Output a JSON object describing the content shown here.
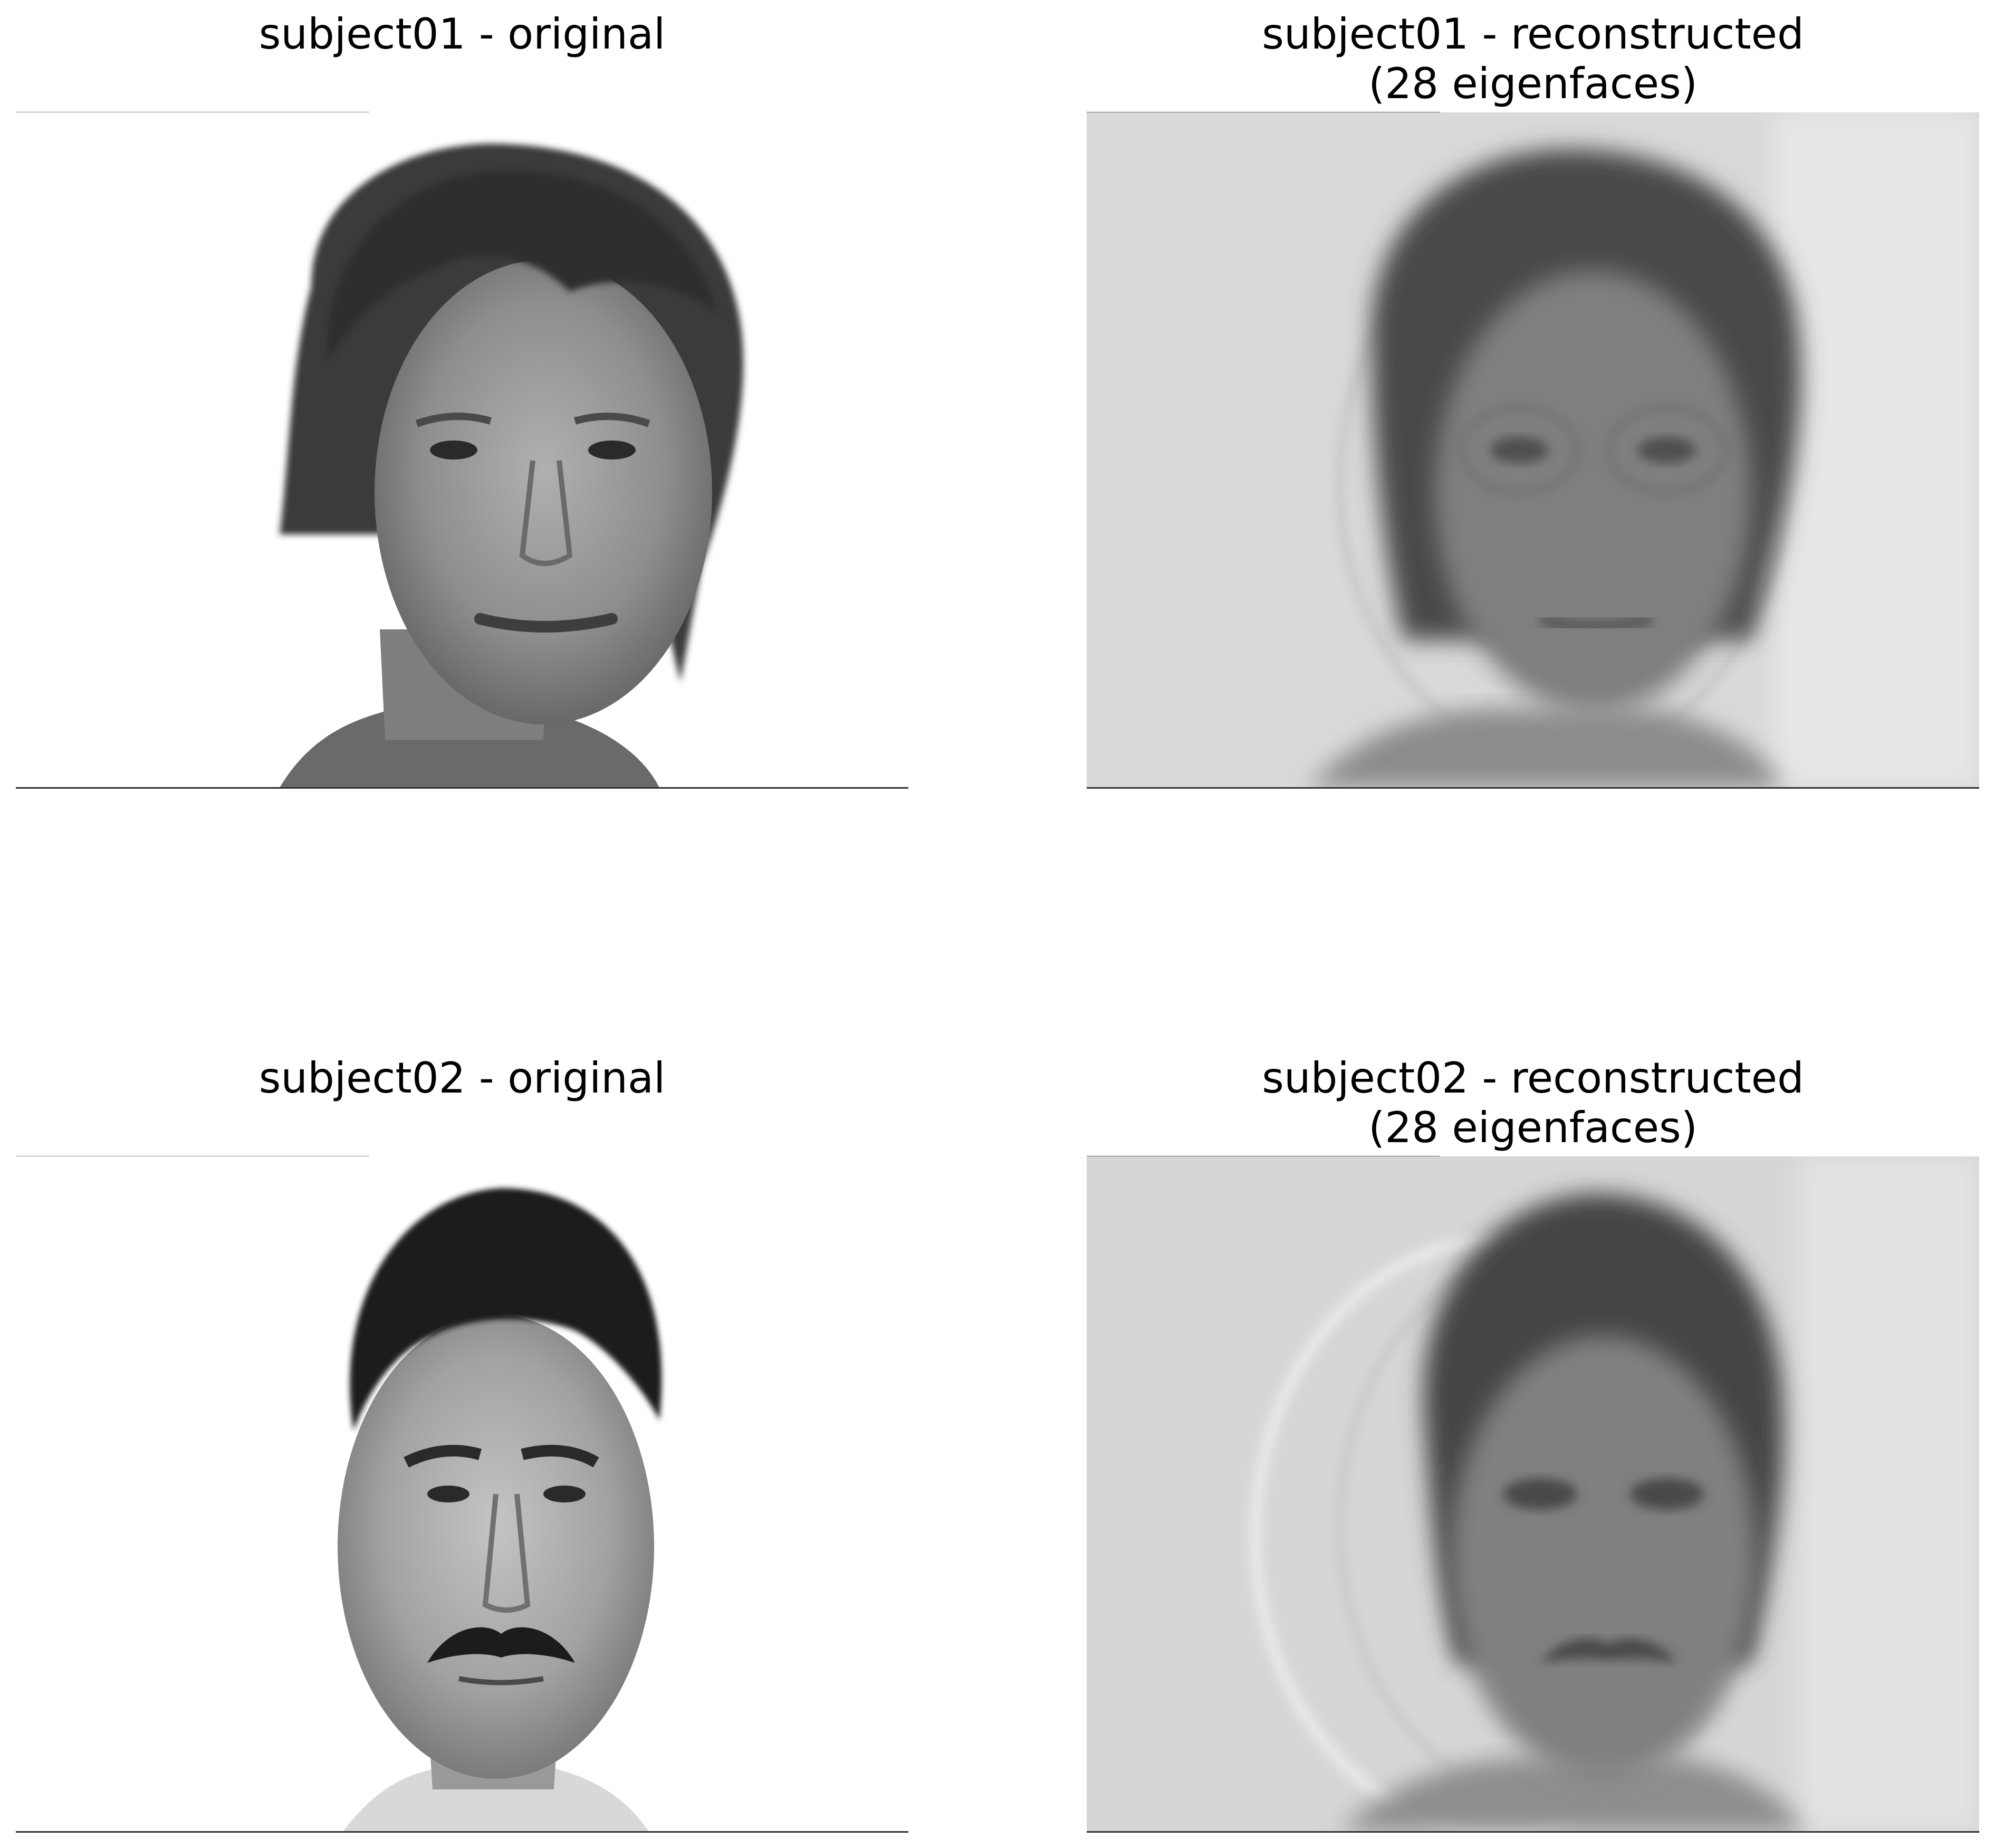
{
  "figure": {
    "panels": [
      {
        "id": "s01-orig",
        "title": "subject01 - original",
        "kind": "original"
      },
      {
        "id": "s01-recon",
        "title": "subject01 - reconstructed\n(28 eigenfaces)",
        "kind": "reconstructed"
      },
      {
        "id": "s02-orig",
        "title": "subject02 - original",
        "kind": "original"
      },
      {
        "id": "s02-recon",
        "title": "subject02 - reconstructed\n(28 eigenfaces)",
        "kind": "reconstructed"
      }
    ],
    "colors": {
      "background": "#ffffff",
      "text": "#000000",
      "axis_line": "#333333"
    }
  }
}
